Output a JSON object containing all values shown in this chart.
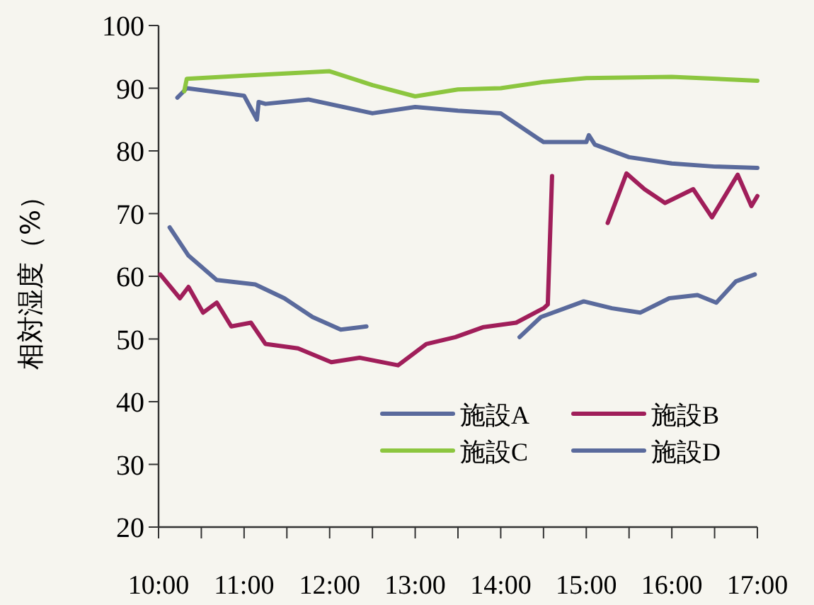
{
  "chart_data": {
    "type": "line",
    "ylabel": "相対湿度（%）",
    "xlim": [
      10,
      17
    ],
    "ylim": [
      20,
      100
    ],
    "yticks": [
      20,
      30,
      40,
      50,
      60,
      70,
      80,
      90,
      100
    ],
    "xticks": [
      {
        "value": 10,
        "label": "10:00"
      },
      {
        "value": 10.5,
        "label": null
      },
      {
        "value": 11,
        "label": "11:00"
      },
      {
        "value": 11.5,
        "label": null
      },
      {
        "value": 12,
        "label": "12:00"
      },
      {
        "value": 12.5,
        "label": null
      },
      {
        "value": 13,
        "label": "13:00"
      },
      {
        "value": 13.5,
        "label": null
      },
      {
        "value": 14,
        "label": "14:00"
      },
      {
        "value": 14.5,
        "label": null
      },
      {
        "value": 15,
        "label": "15:00"
      },
      {
        "value": 15.5,
        "label": null
      },
      {
        "value": 16,
        "label": "16:00"
      },
      {
        "value": 16.5,
        "label": null
      },
      {
        "value": 17,
        "label": "17:00"
      }
    ],
    "grid": false,
    "legend": "bottom right",
    "marker": "none",
    "line_style": "solid",
    "series": [
      {
        "name": "施設A",
        "color": "#5a6a9c",
        "x": [
          10.22,
          10.33,
          11,
          11.15,
          11.17,
          11.25,
          11.75,
          12.5,
          13,
          13.5,
          14,
          14.5,
          15,
          15.03,
          15.1,
          15.5,
          16,
          16.5,
          17
        ],
        "values": [
          88.5,
          90,
          88.8,
          85,
          87.8,
          87.5,
          88.2,
          86,
          87,
          86.4,
          86,
          81.4,
          81.4,
          82.5,
          81,
          79,
          78,
          77.5,
          77.3
        ]
      },
      {
        "name": "施設B",
        "color": "#a01e5a",
        "x": [
          10.02,
          10.25,
          10.35,
          10.52,
          10.68,
          10.85,
          11.08,
          11.25,
          11.63,
          12.02,
          12.35,
          12.8,
          13.13,
          13.47,
          13.8,
          14.18,
          14.5,
          14.55,
          14.6,
          14.9,
          15.25,
          15.47,
          15.68,
          15.92,
          16.25,
          16.47,
          16.77,
          16.93,
          17
        ],
        "values": [
          60.3,
          56.5,
          58.3,
          54.2,
          55.8,
          52,
          52.6,
          49.2,
          48.5,
          46.3,
          47,
          45.8,
          49.2,
          50.3,
          51.9,
          52.6,
          54.9,
          55.5,
          76,
          null,
          68.5,
          76.4,
          73.9,
          71.7,
          73.9,
          69.4,
          76.2,
          71.2,
          72.8
        ]
      },
      {
        "name": "施設C",
        "color": "#8cc63f",
        "x": [
          10.3,
          10.33,
          11,
          12,
          12.5,
          13,
          13.5,
          14,
          14.5,
          15,
          16,
          17
        ],
        "values": [
          89.5,
          91.5,
          92,
          92.7,
          90.5,
          88.7,
          89.8,
          90,
          91,
          91.6,
          91.8,
          91.2
        ]
      },
      {
        "name": "施設D",
        "color": "#5a6a9c",
        "x": [
          10.13,
          10.35,
          10.68,
          11.13,
          11.47,
          11.8,
          12.13,
          12.43,
          13.3,
          14.22,
          14.47,
          14.97,
          15.3,
          15.63,
          15.97,
          16.3,
          16.52,
          16.75,
          16.97
        ],
        "values": [
          67.8,
          63.3,
          59.4,
          58.7,
          56.5,
          53.5,
          51.5,
          52,
          null,
          50.3,
          53.5,
          56,
          54.9,
          54.2,
          56.5,
          57,
          55.8,
          59.2,
          60.3
        ]
      }
    ]
  }
}
